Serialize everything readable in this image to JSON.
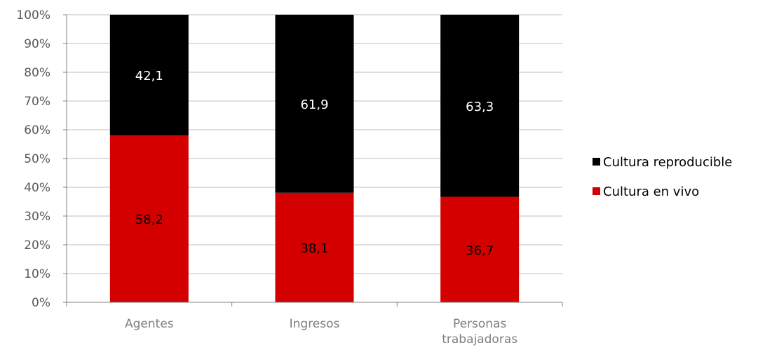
{
  "chart_data": {
    "type": "bar",
    "stacked": true,
    "percent_stacked": true,
    "categories": [
      [
        "Agentes"
      ],
      [
        "Ingresos"
      ],
      [
        "Personas",
        "trabajadoras"
      ]
    ],
    "series": [
      {
        "name": "Cultura en vivo",
        "values": [
          58.2,
          38.1,
          36.7
        ],
        "color": "#d40000",
        "label_color": "#000000"
      },
      {
        "name": "Cultura reproducible",
        "values": [
          42.1,
          61.9,
          63.3
        ],
        "color": "#000000",
        "label_color": "#ffffff"
      }
    ],
    "data_labels": [
      [
        "58,2",
        "38,1",
        "36,7"
      ],
      [
        "42,1",
        "61,9",
        "63,3"
      ]
    ],
    "y_ticks": [
      "0%",
      "10%",
      "20%",
      "30%",
      "40%",
      "50%",
      "60%",
      "70%",
      "80%",
      "90%",
      "100%"
    ],
    "ylim": [
      0,
      100
    ],
    "grid": true,
    "grid_color": "#bfbfbf",
    "axis_color": "#808080",
    "legend_position": "right",
    "legend": [
      {
        "label": "Cultura reproducible",
        "color": "#000000"
      },
      {
        "label": "Cultura en vivo",
        "color": "#d40000"
      }
    ],
    "title": "",
    "xlabel": "",
    "ylabel": ""
  }
}
